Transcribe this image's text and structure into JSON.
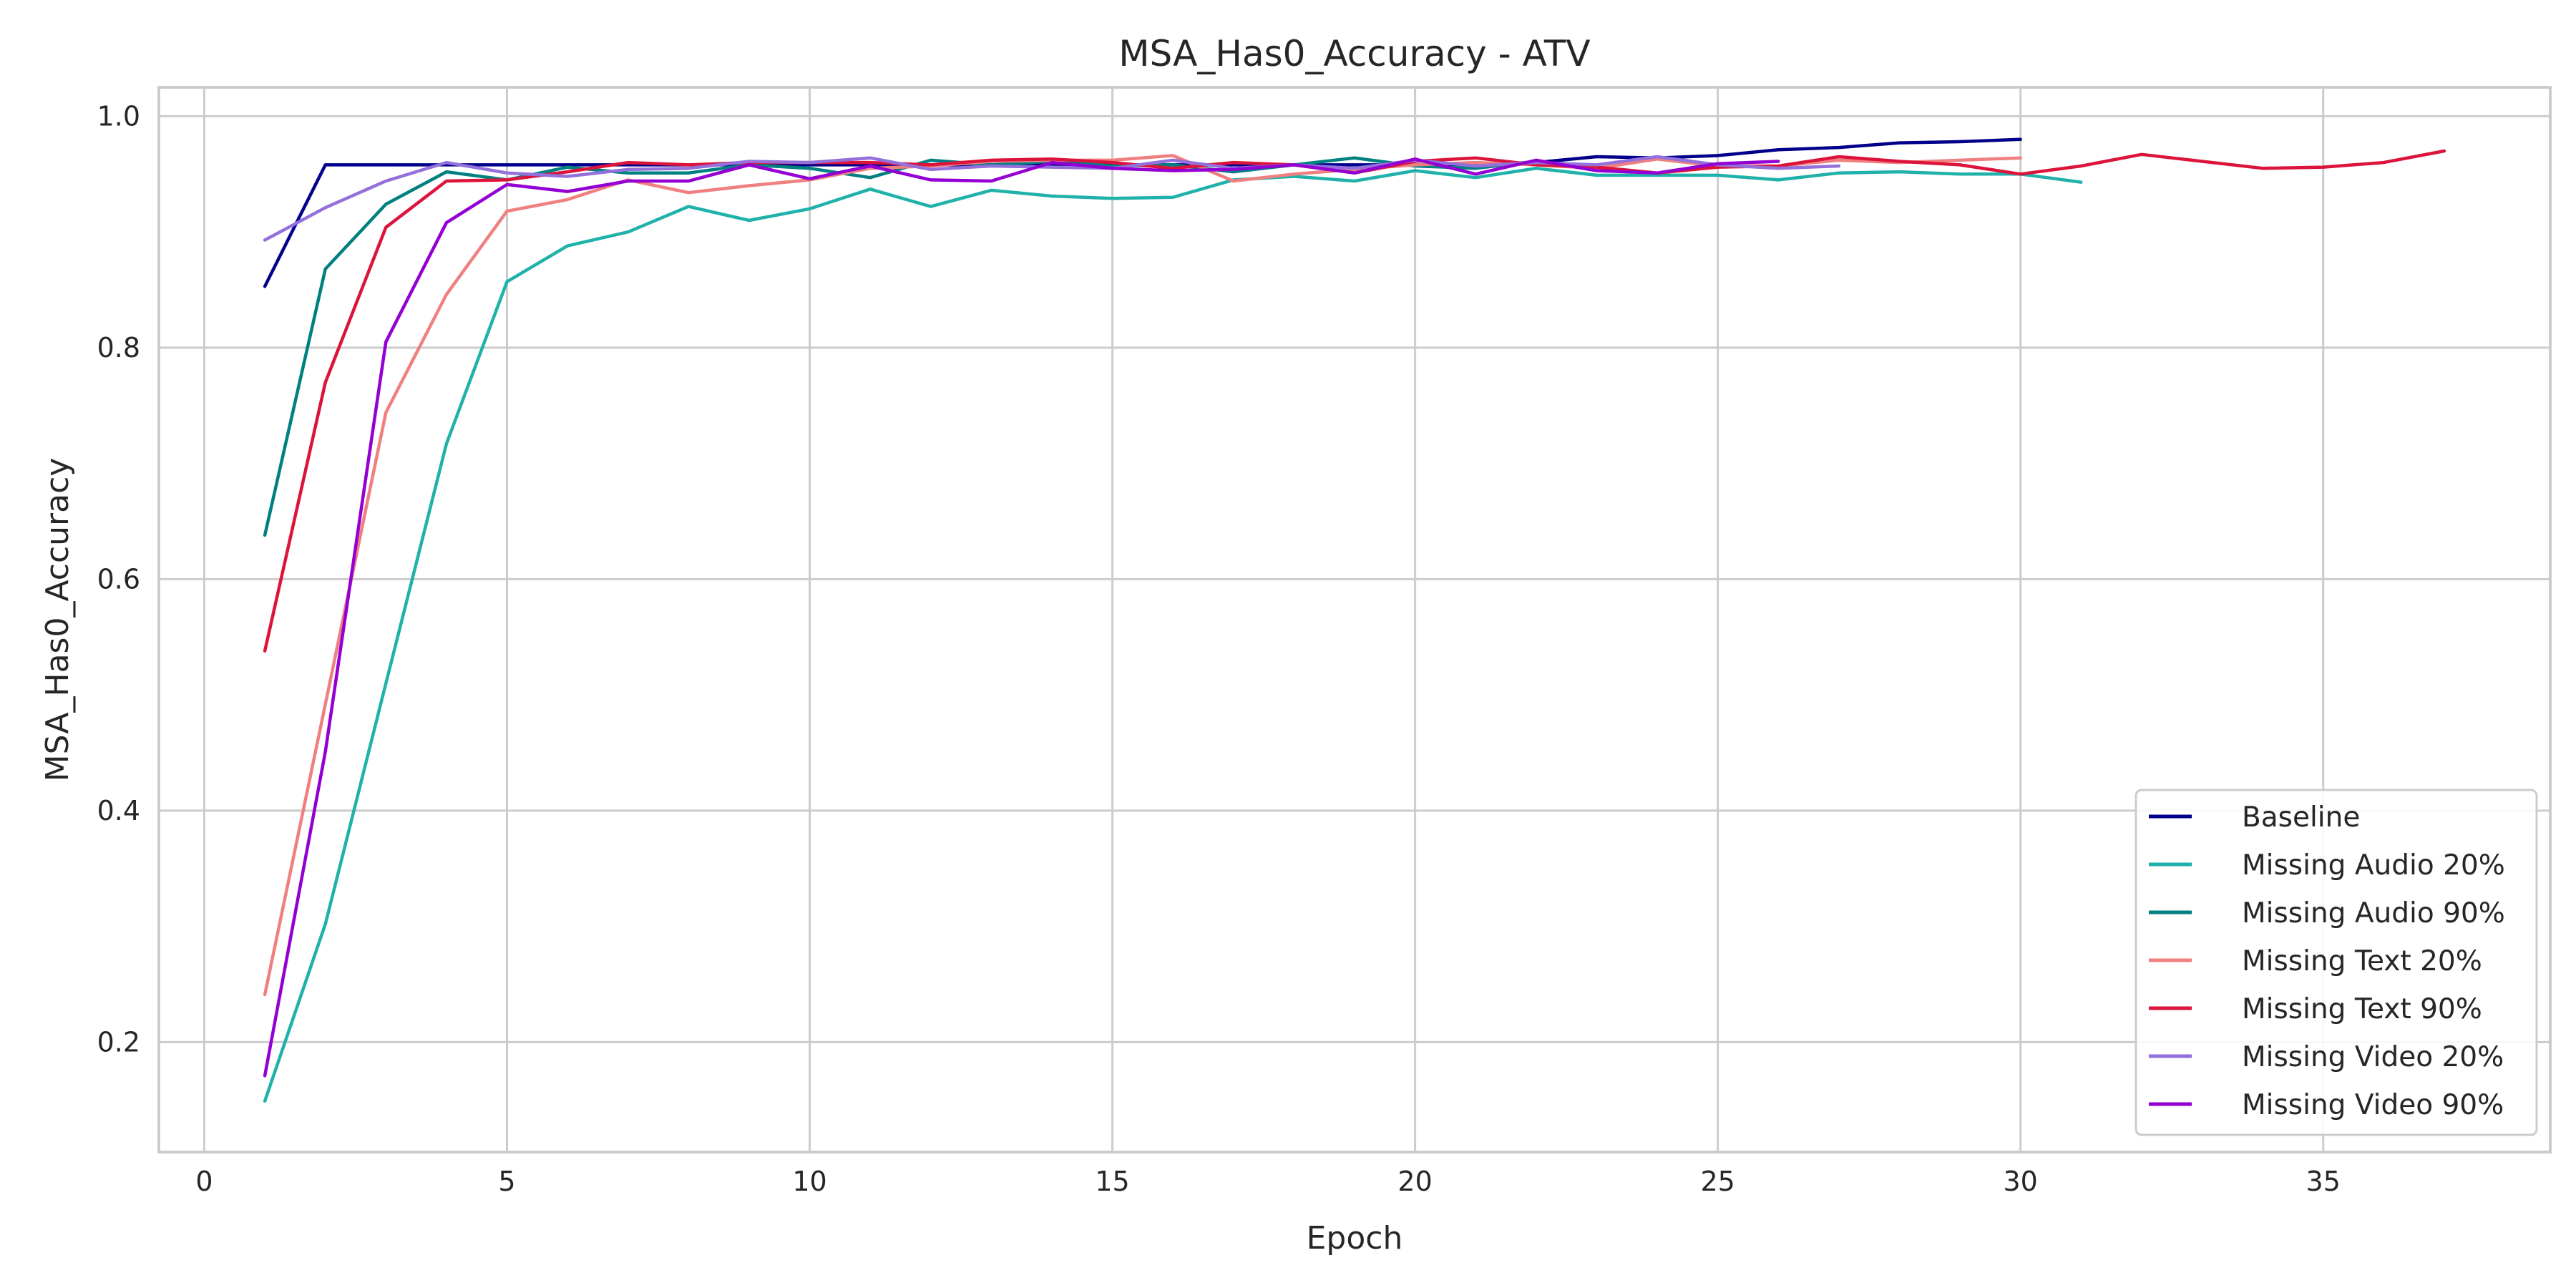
{
  "chart_data": {
    "type": "line",
    "title": "MSA_Has0_Accuracy - ATV",
    "xlabel": "Epoch",
    "ylabel": "MSA_Has0_Accuracy",
    "xlim": [
      -0.75,
      38.75
    ],
    "ylim": [
      0.105,
      1.025
    ],
    "xticks": [
      0,
      5,
      10,
      15,
      20,
      25,
      30,
      35
    ],
    "yticks": [
      0.2,
      0.4,
      0.6,
      0.8,
      1.0
    ],
    "xtick_labels": [
      "0",
      "5",
      "10",
      "15",
      "20",
      "25",
      "30",
      "35"
    ],
    "ytick_labels": [
      "0.2",
      "0.4",
      "0.6",
      "0.8",
      "1.0"
    ],
    "grid": true,
    "legend_position": "lower-right",
    "series": [
      {
        "name": "Baseline",
        "color": "#00008b",
        "x": [
          1,
          2,
          3,
          4,
          5,
          6,
          7,
          8,
          9,
          10,
          11,
          12,
          13,
          14,
          15,
          16,
          17,
          18,
          19,
          20,
          21,
          22,
          23,
          24,
          25,
          26,
          27,
          28,
          29,
          30
        ],
        "y": [
          0.853,
          0.958,
          0.958,
          0.958,
          0.958,
          0.958,
          0.958,
          0.958,
          0.958,
          0.958,
          0.958,
          0.958,
          0.958,
          0.958,
          0.958,
          0.958,
          0.958,
          0.958,
          0.958,
          0.958,
          0.958,
          0.96,
          0.965,
          0.964,
          0.966,
          0.971,
          0.973,
          0.977,
          0.978,
          0.98
        ]
      },
      {
        "name": "Missing Audio 20%",
        "color": "#20b2aa",
        "x": [
          1,
          2,
          3,
          4,
          5,
          6,
          7,
          8,
          9,
          10,
          11,
          12,
          13,
          14,
          15,
          16,
          17,
          18,
          19,
          20,
          21,
          22,
          23,
          24,
          25,
          26,
          27,
          28,
          29,
          30,
          31
        ],
        "y": [
          0.149,
          0.302,
          0.51,
          0.717,
          0.857,
          0.888,
          0.9,
          0.922,
          0.91,
          0.92,
          0.937,
          0.922,
          0.936,
          0.931,
          0.929,
          0.93,
          0.945,
          0.948,
          0.944,
          0.953,
          0.947,
          0.955,
          0.949,
          0.949,
          0.949,
          0.945,
          0.951,
          0.952,
          0.95,
          0.95,
          0.943
        ]
      },
      {
        "name": "Missing Audio 90%",
        "color": "#008080",
        "x": [
          1,
          2,
          3,
          4,
          5,
          6,
          7,
          8,
          9,
          10,
          11,
          12,
          13,
          14,
          15,
          16,
          17,
          18,
          19,
          20,
          21,
          22,
          23
        ],
        "y": [
          0.638,
          0.868,
          0.924,
          0.952,
          0.945,
          0.956,
          0.951,
          0.951,
          0.958,
          0.955,
          0.947,
          0.962,
          0.958,
          0.961,
          0.957,
          0.958,
          0.952,
          0.958,
          0.964,
          0.957,
          0.955,
          0.961,
          0.955
        ]
      },
      {
        "name": "Missing Text 20%",
        "color": "#f08080",
        "x": [
          1,
          2,
          3,
          4,
          5,
          6,
          7,
          8,
          9,
          10,
          11,
          12,
          13,
          14,
          15,
          16,
          17,
          18,
          19,
          20,
          21,
          22,
          23,
          24,
          25,
          26,
          27,
          28,
          29,
          30
        ],
        "y": [
          0.241,
          0.492,
          0.744,
          0.846,
          0.918,
          0.928,
          0.945,
          0.934,
          0.94,
          0.945,
          0.955,
          0.957,
          0.961,
          0.962,
          0.962,
          0.966,
          0.944,
          0.95,
          0.954,
          0.958,
          0.96,
          0.958,
          0.955,
          0.963,
          0.957,
          0.957,
          0.962,
          0.96,
          0.962,
          0.964
        ]
      },
      {
        "name": "Missing Text 90%",
        "color": "#dc143c",
        "x": [
          1,
          2,
          3,
          4,
          5,
          6,
          7,
          8,
          9,
          10,
          11,
          12,
          13,
          14,
          15,
          16,
          17,
          18,
          19,
          20,
          21,
          22,
          23,
          24,
          25,
          26,
          27,
          28,
          29,
          30,
          31,
          32,
          33,
          34,
          35,
          36,
          37
        ],
        "y": [
          0.538,
          0.77,
          0.904,
          0.944,
          0.945,
          0.952,
          0.96,
          0.958,
          0.96,
          0.96,
          0.96,
          0.958,
          0.962,
          0.963,
          0.96,
          0.955,
          0.96,
          0.958,
          0.951,
          0.961,
          0.964,
          0.958,
          0.956,
          0.951,
          0.956,
          0.957,
          0.965,
          0.961,
          0.958,
          0.95,
          0.957,
          0.967,
          0.961,
          0.955,
          0.956,
          0.96,
          0.97
        ]
      },
      {
        "name": "Missing Video 20%",
        "color": "#9370db",
        "x": [
          1,
          2,
          3,
          4,
          5,
          6,
          7,
          8,
          9,
          10,
          11,
          12,
          13,
          14,
          15,
          16,
          17,
          18,
          19,
          20,
          21,
          22,
          23,
          24,
          25,
          26,
          27
        ],
        "y": [
          0.893,
          0.921,
          0.944,
          0.96,
          0.951,
          0.948,
          0.954,
          0.955,
          0.961,
          0.96,
          0.964,
          0.954,
          0.957,
          0.956,
          0.955,
          0.962,
          0.955,
          0.958,
          0.955,
          0.962,
          0.957,
          0.96,
          0.958,
          0.965,
          0.958,
          0.955,
          0.957
        ]
      },
      {
        "name": "Missing Video 90%",
        "color": "#9400d3",
        "x": [
          1,
          2,
          3,
          4,
          5,
          6,
          7,
          8,
          9,
          10,
          11,
          12,
          13,
          14,
          15,
          16,
          17,
          18,
          19,
          20,
          21,
          22,
          23,
          24,
          25,
          26
        ],
        "y": [
          0.171,
          0.451,
          0.805,
          0.908,
          0.941,
          0.935,
          0.944,
          0.944,
          0.958,
          0.946,
          0.957,
          0.945,
          0.944,
          0.96,
          0.955,
          0.953,
          0.954,
          0.958,
          0.951,
          0.963,
          0.95,
          0.962,
          0.953,
          0.951,
          0.959,
          0.961
        ]
      }
    ]
  }
}
